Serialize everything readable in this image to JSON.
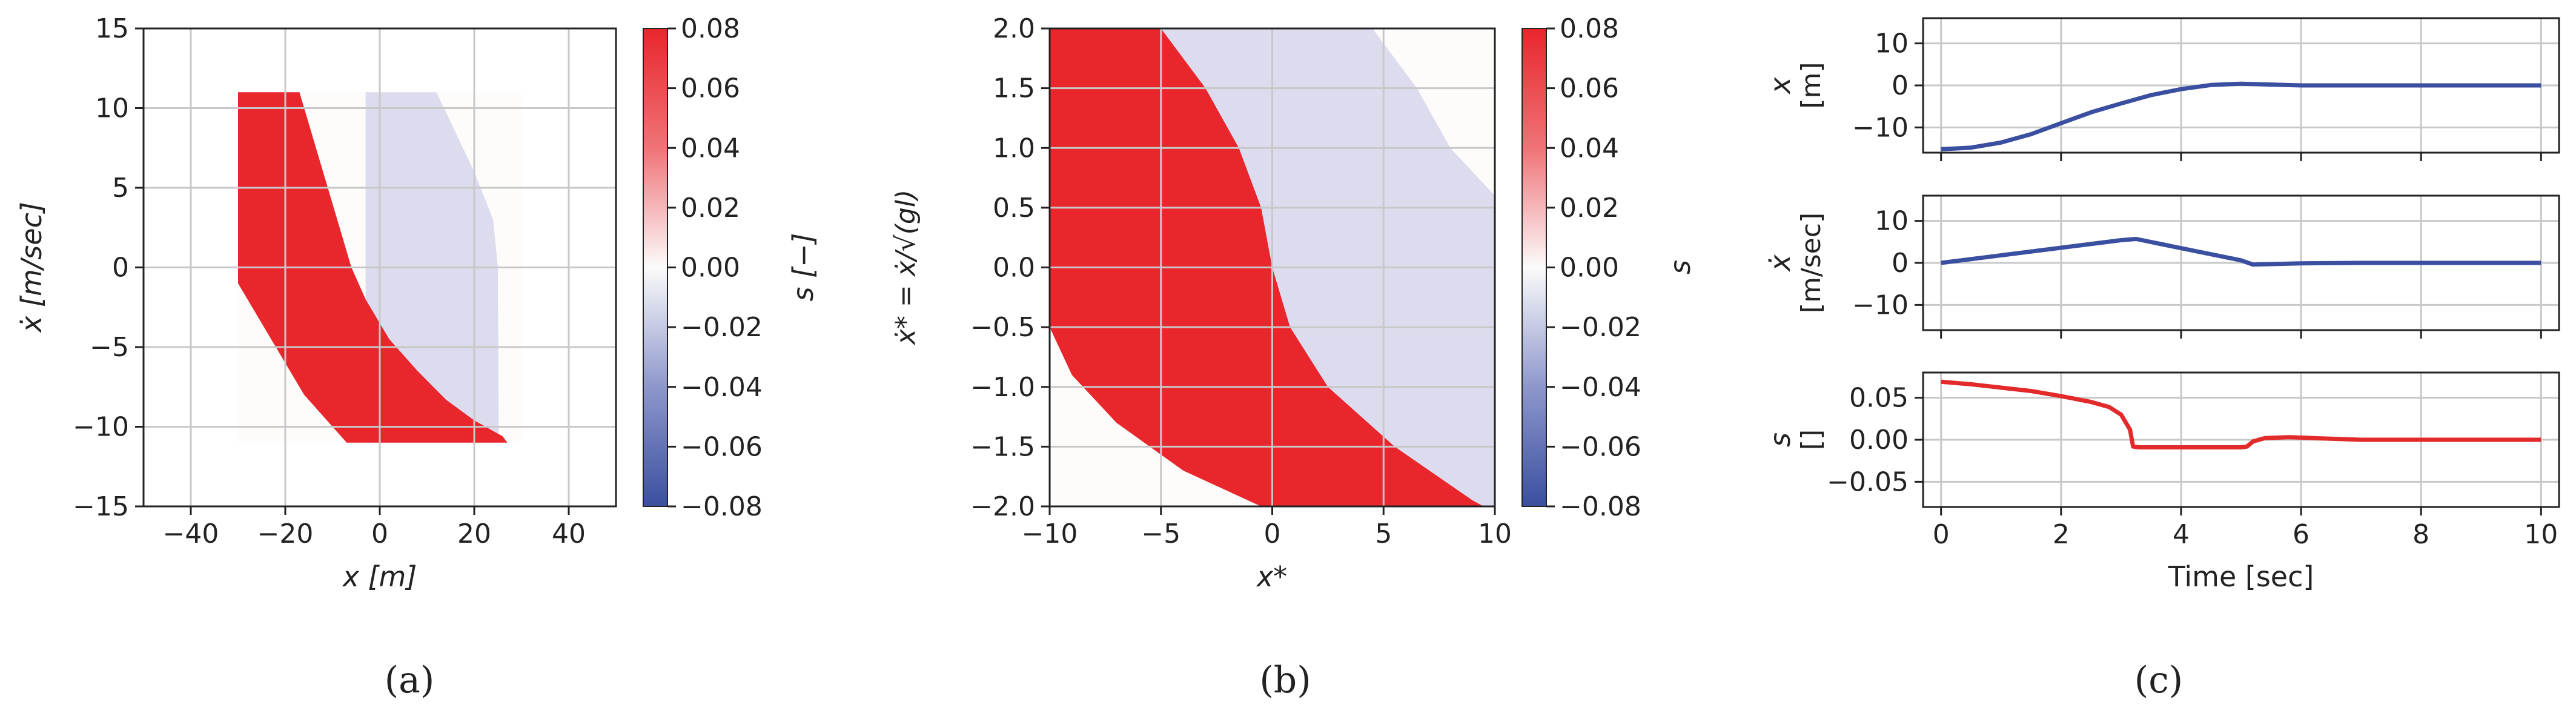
{
  "chart_data": [
    {
      "id": "a",
      "type": "heatmap",
      "caption": "(a)",
      "xlabel": "x [m]",
      "ylabel": "ẋ [m/sec]",
      "xlim": [
        -50,
        50
      ],
      "ylim": [
        -15,
        15
      ],
      "xticks": [
        -40,
        -20,
        0,
        20,
        40
      ],
      "yticks": [
        -15,
        -10,
        -5,
        0,
        5,
        10,
        15
      ],
      "grid": true,
      "colorbar": {
        "label": "s [−]",
        "range": [
          -0.08,
          0.08
        ],
        "ticks": [
          "0.08",
          "0.06",
          "0.04",
          "0.02",
          "0.00",
          "−0.02",
          "−0.04",
          "−0.06",
          "−0.08"
        ]
      },
      "region": {
        "x_range": [
          -30,
          30
        ],
        "v_range": [
          -11,
          11
        ],
        "positive_value": 0.08,
        "negative_value": -0.01
      },
      "colors": {
        "pos": "#e8262c",
        "neg": "#dcdcee",
        "bg": "#fdfcfa"
      }
    },
    {
      "id": "b",
      "type": "heatmap",
      "caption": "(b)",
      "xlabel": "x*",
      "ylabel": "ẋ* = ẋ/√(gl)",
      "xlim": [
        -10,
        10
      ],
      "ylim": [
        -2,
        2
      ],
      "xticks": [
        -10,
        -5,
        0,
        5,
        10
      ],
      "yticks": [
        "2.0",
        "1.5",
        "1.0",
        "0.5",
        "0.0",
        "−0.5",
        "−1.0",
        "−1.5",
        "−2.0"
      ],
      "grid": true,
      "colorbar": {
        "label": "s",
        "range": [
          -0.08,
          0.08
        ],
        "ticks": [
          "0.08",
          "0.06",
          "0.04",
          "0.02",
          "0.00",
          "−0.02",
          "−0.04",
          "−0.06",
          "−0.08"
        ]
      },
      "colors": {
        "pos": "#e8262c",
        "neg": "#dcdcee",
        "bg": "#fdfcfa"
      }
    },
    {
      "id": "c",
      "type": "line",
      "caption": "(c)",
      "xlabel": "Time [sec]",
      "xlim": [
        -0.3,
        10.3
      ],
      "xticks": [
        0,
        2,
        4,
        6,
        8,
        10
      ],
      "grid": true,
      "subplots": [
        {
          "ylabel_top": "x",
          "ylabel_unit": "[m]",
          "ylim": [
            -16,
            16
          ],
          "yticks": [
            "10",
            "0",
            "−10"
          ],
          "ytick_values": [
            10,
            0,
            -10
          ],
          "color": "#3a4fa0",
          "t": [
            0,
            0.5,
            1,
            1.5,
            2,
            2.5,
            3,
            3.5,
            4,
            4.5,
            5,
            5.5,
            6,
            7,
            8,
            9,
            10
          ],
          "y": [
            -15.2,
            -14.8,
            -13.6,
            -11.6,
            -9,
            -6.4,
            -4.3,
            -2.3,
            -0.9,
            0.1,
            0.4,
            0.2,
            0,
            0,
            0,
            0,
            0
          ]
        },
        {
          "ylabel_top": "ẋ",
          "ylabel_unit": "[m/sec]",
          "ylim": [
            -16,
            16
          ],
          "yticks": [
            "10",
            "0",
            "−10"
          ],
          "ytick_values": [
            10,
            0,
            -10
          ],
          "color": "#3a4fa0",
          "t": [
            0,
            1,
            2,
            3,
            3.25,
            4,
            5,
            5.2,
            6,
            7,
            8,
            10
          ],
          "y": [
            0,
            1.8,
            3.6,
            5.4,
            5.7,
            3.5,
            0.6,
            -0.4,
            -0.1,
            0,
            0,
            0
          ]
        },
        {
          "ylabel_top": "s",
          "ylabel_unit": "[]",
          "ylim": [
            -0.08,
            0.08
          ],
          "yticks": [
            "0.05",
            "0.00",
            "−0.05"
          ],
          "ytick_values": [
            0.05,
            0,
            -0.05
          ],
          "color": "#e22a2a",
          "t": [
            0,
            0.5,
            1,
            1.5,
            2,
            2.5,
            2.8,
            3,
            3.15,
            3.2,
            3.3,
            4,
            5,
            5.1,
            5.2,
            5.4,
            5.8,
            6.2,
            7,
            8,
            10
          ],
          "y": [
            0.069,
            0.066,
            0.062,
            0.058,
            0.052,
            0.045,
            0.039,
            0.03,
            0.012,
            -0.008,
            -0.009,
            -0.009,
            -0.009,
            -0.008,
            -0.002,
            0.002,
            0.003,
            0.002,
            0,
            0,
            0
          ]
        }
      ]
    }
  ]
}
